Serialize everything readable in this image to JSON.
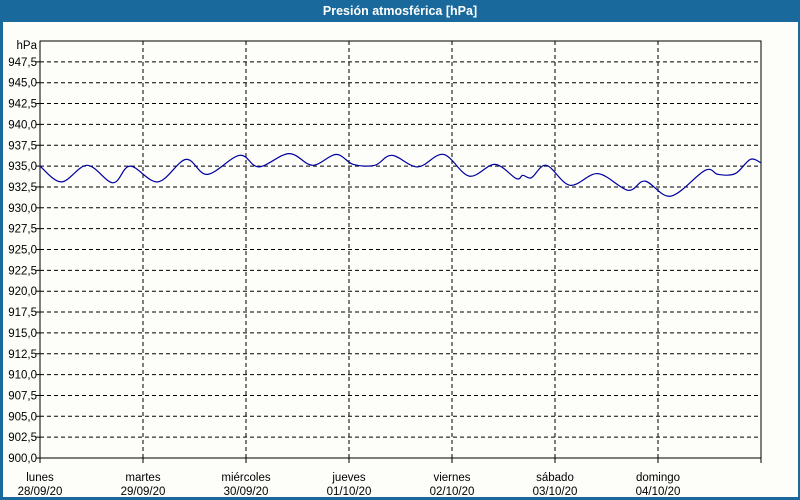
{
  "window": {
    "title": "Presión atmosférica [hPa]"
  },
  "colors": {
    "titlebar_and_border": "#1a699c",
    "title_text": "#ffffff",
    "plot_background": "#fdfefa",
    "line": "#0000a0",
    "grid": "#000000",
    "axis_text": "#000000"
  },
  "chart_data": {
    "type": "line",
    "title": "Presión atmosférica [hPa]",
    "ylabel": "hPa",
    "y_axis": {
      "unit_label": "hPa",
      "min": 900,
      "max": 950,
      "tick_step": 2.5,
      "ticks": [
        {
          "value": 947.5,
          "label": "947,5"
        },
        {
          "value": 945.0,
          "label": "945,0"
        },
        {
          "value": 942.5,
          "label": "942,5"
        },
        {
          "value": 940.0,
          "label": "940,0"
        },
        {
          "value": 937.5,
          "label": "937,5"
        },
        {
          "value": 935.0,
          "label": "935,0"
        },
        {
          "value": 932.5,
          "label": "932,5"
        },
        {
          "value": 930.0,
          "label": "930,0"
        },
        {
          "value": 927.5,
          "label": "927,5"
        },
        {
          "value": 925.0,
          "label": "925,0"
        },
        {
          "value": 922.5,
          "label": "922,5"
        },
        {
          "value": 920.0,
          "label": "920,0"
        },
        {
          "value": 917.5,
          "label": "917,5"
        },
        {
          "value": 915.0,
          "label": "915,0"
        },
        {
          "value": 912.5,
          "label": "912,5"
        },
        {
          "value": 910.0,
          "label": "910,0"
        },
        {
          "value": 907.5,
          "label": "907,5"
        },
        {
          "value": 905.0,
          "label": "905,0"
        },
        {
          "value": 902.5,
          "label": "902,5"
        },
        {
          "value": 900.0,
          "label": "900,0"
        }
      ]
    },
    "x_axis": {
      "hours_total": 168,
      "days": [
        {
          "name": "lunes",
          "date": "28/09/20"
        },
        {
          "name": "martes",
          "date": "29/09/20"
        },
        {
          "name": "miércoles",
          "date": "30/09/20"
        },
        {
          "name": "jueves",
          "date": "01/10/20"
        },
        {
          "name": "viernes",
          "date": "02/10/20"
        },
        {
          "name": "sábado",
          "date": "03/10/20"
        },
        {
          "name": "domingo",
          "date": "04/10/20"
        }
      ]
    },
    "grid": true,
    "legend": false,
    "series": [
      {
        "name": "Presión atmosférica [hPa]",
        "points_t_hours_v_hpa": [
          [
            0,
            935.0
          ],
          [
            5,
            933.1
          ],
          [
            11,
            935.1
          ],
          [
            17,
            933.0
          ],
          [
            21,
            935.0
          ],
          [
            27.5,
            933.1
          ],
          [
            34,
            935.8
          ],
          [
            39,
            934.0
          ],
          [
            46.5,
            936.3
          ],
          [
            51,
            934.9
          ],
          [
            58,
            936.5
          ],
          [
            63.5,
            935.1
          ],
          [
            69,
            936.4
          ],
          [
            73,
            935.2
          ],
          [
            78,
            935.1
          ],
          [
            82,
            936.3
          ],
          [
            88,
            934.9
          ],
          [
            94,
            936.4
          ],
          [
            100,
            933.8
          ],
          [
            106,
            935.2
          ],
          [
            111,
            933.5
          ],
          [
            112.5,
            933.9
          ],
          [
            114.5,
            933.6
          ],
          [
            118,
            935.1
          ],
          [
            123.5,
            932.7
          ],
          [
            130,
            934.1
          ],
          [
            137,
            932.1
          ],
          [
            141,
            933.2
          ],
          [
            147,
            931.4
          ],
          [
            155,
            934.5
          ],
          [
            158,
            934.0
          ],
          [
            162,
            934.1
          ],
          [
            165.5,
            935.8
          ],
          [
            168,
            935.4
          ]
        ]
      }
    ]
  }
}
